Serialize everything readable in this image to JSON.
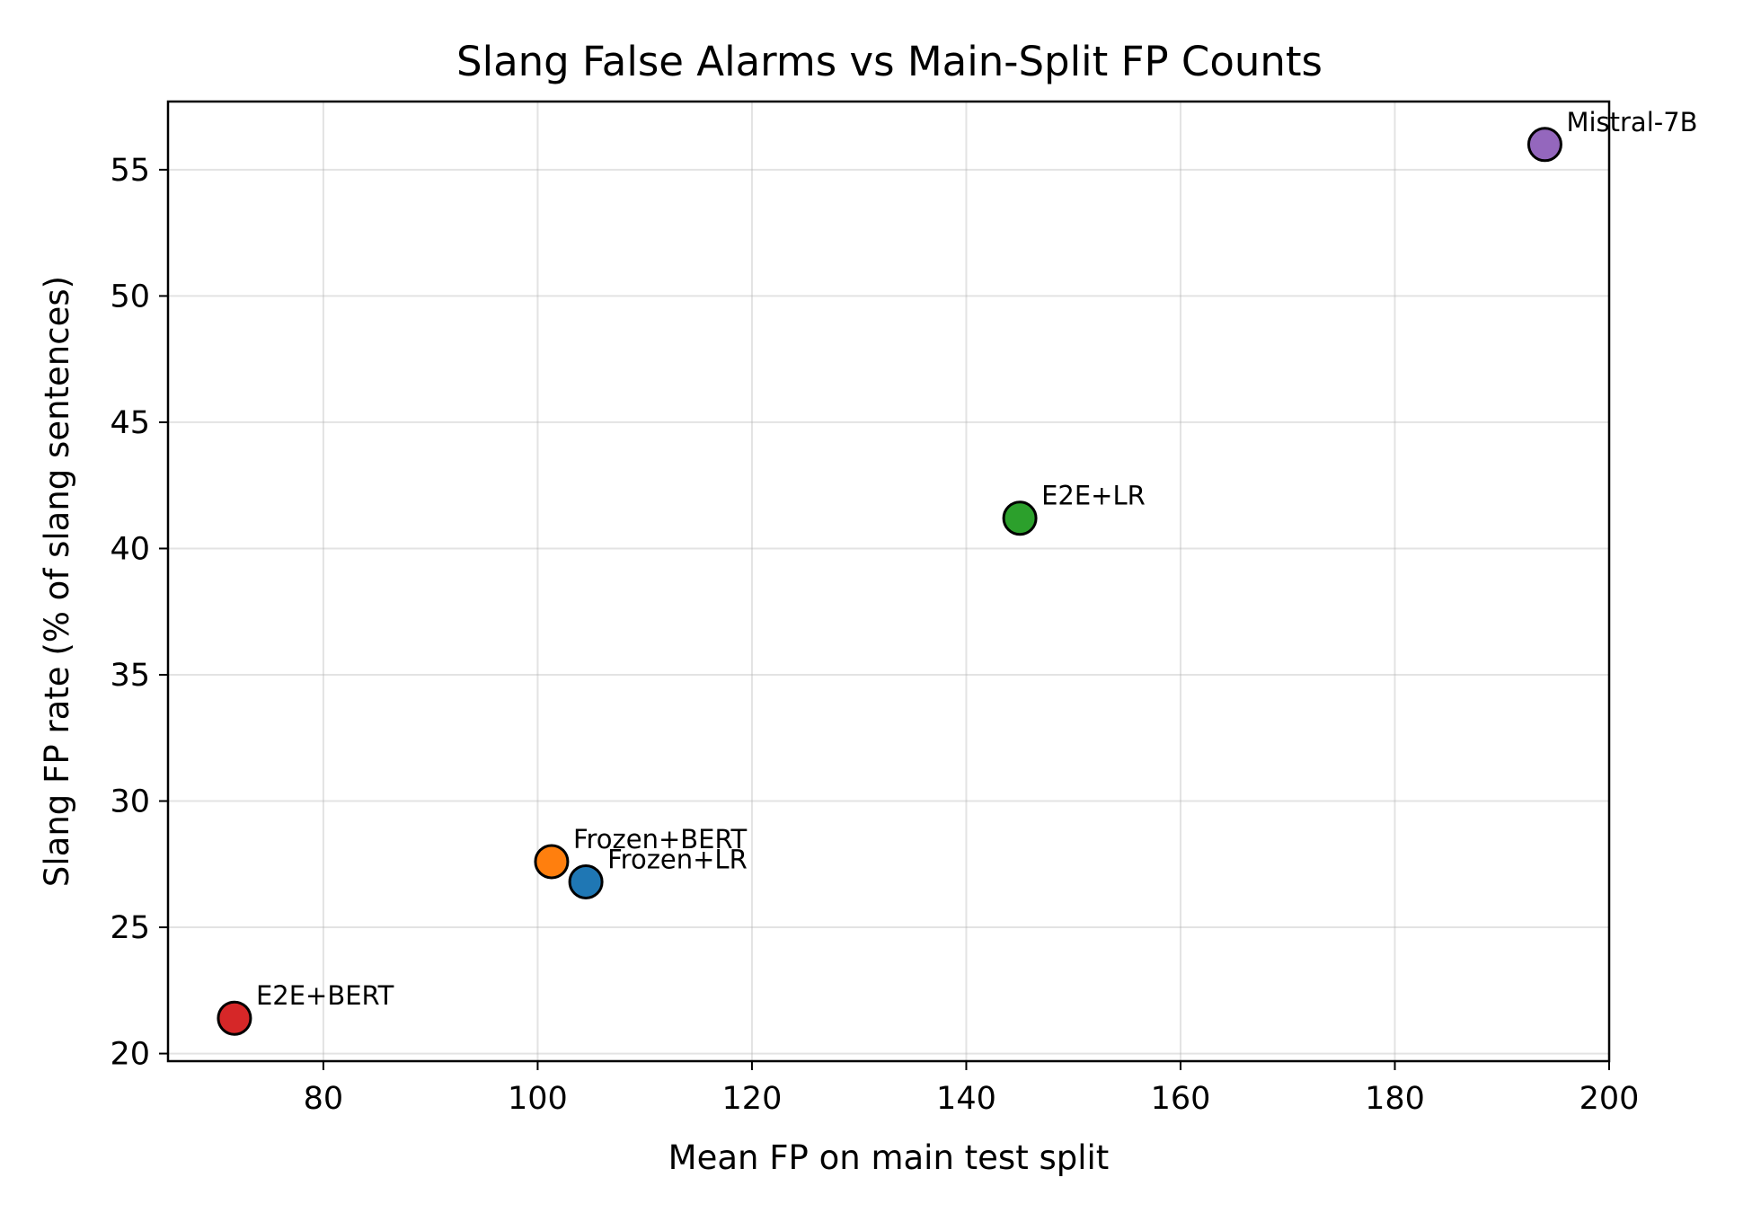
{
  "chart_data": {
    "type": "scatter",
    "title": "Slang False Alarms vs Main-Split FP Counts",
    "xlabel": "Mean FP on main test split",
    "ylabel": "Slang FP rate (% of slang sentences)",
    "xlim": [
      65.5,
      200
    ],
    "ylim": [
      19.7,
      57.7
    ],
    "xticks": [
      80,
      100,
      120,
      140,
      160,
      180,
      200
    ],
    "yticks": [
      20,
      25,
      30,
      35,
      40,
      45,
      50,
      55
    ],
    "grid": true,
    "points": [
      {
        "label": "Frozen+LR",
        "x": 104.5,
        "y": 26.8,
        "color": "#1f77b4"
      },
      {
        "label": "Frozen+BERT",
        "x": 101.3,
        "y": 27.6,
        "color": "#ff7f0e"
      },
      {
        "label": "E2E+LR",
        "x": 145.0,
        "y": 41.2,
        "color": "#2ca02c"
      },
      {
        "label": "E2E+BERT",
        "x": 71.7,
        "y": 21.4,
        "color": "#d62728"
      },
      {
        "label": "Mistral-7B",
        "x": 194.0,
        "y": 56.0,
        "color": "#9467bd"
      }
    ]
  }
}
